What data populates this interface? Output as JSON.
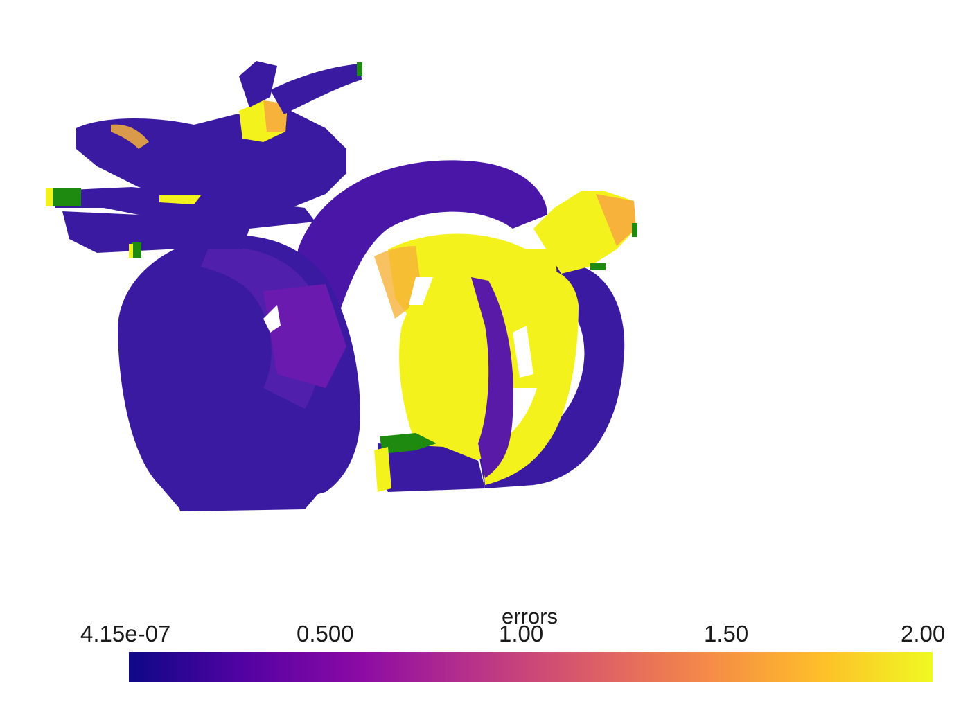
{
  "scalar_field": "errors",
  "colormap": "plasma",
  "range": [
    4.15e-07,
    2.0
  ],
  "colorbar": {
    "title": "errors",
    "ticks": [
      "4.15e-07",
      "0.500",
      "1.00",
      "1.50",
      "2.00"
    ],
    "stops": [
      "#0d0887",
      "#5302a3",
      "#8b0aa5",
      "#b83289",
      "#db5c68",
      "#f48849",
      "#febd2a",
      "#f0f921"
    ]
  },
  "colors": {
    "low": "#3a1aa0",
    "mid": "#7a12b0",
    "high": "#f4f21c",
    "orange": "#f6b23a",
    "green": "#1f8a10",
    "background": "#ffffff"
  }
}
